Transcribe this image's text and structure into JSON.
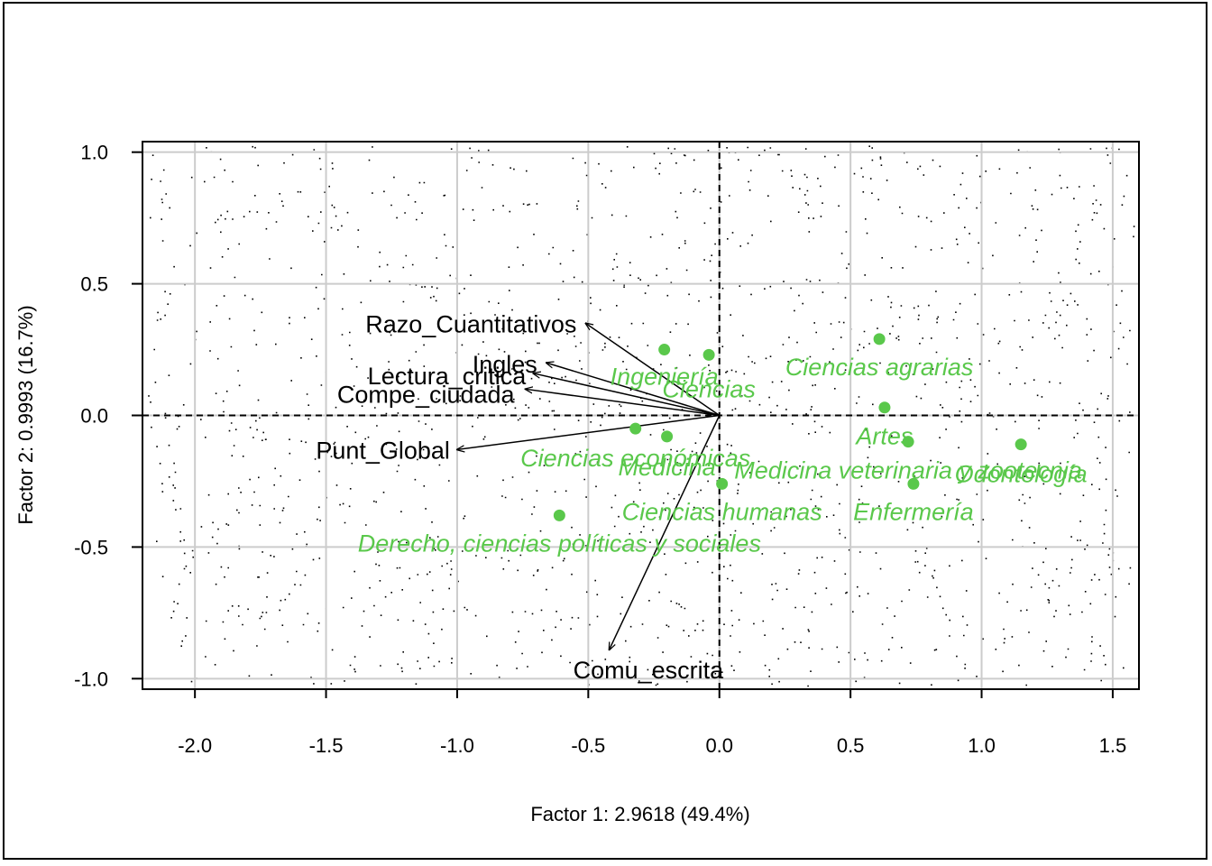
{
  "chart_data": {
    "type": "scatter",
    "subtype": "biplot",
    "xlabel": "Factor 1: 2.9618 (49.4%)",
    "ylabel": "Factor 2: 0.9993 (16.7%)",
    "xlim": [
      -2.2,
      1.6
    ],
    "ylim": [
      -1.04,
      1.04
    ],
    "x_ticks": [
      -2.0,
      -1.5,
      -1.0,
      -0.5,
      0.0,
      0.5,
      1.0,
      1.5
    ],
    "x_tick_labels": [
      "-2.0",
      "-1.5",
      "-1.0",
      "-0.5",
      "0.0",
      "0.5",
      "1.0",
      "1.5"
    ],
    "y_ticks": [
      1.0,
      0.5,
      0.0,
      -0.5,
      -1.0
    ],
    "y_tick_labels": [
      "1.0",
      "0.5",
      "0.0",
      "-0.5",
      "-1.0"
    ],
    "grid": true,
    "reference_lines": {
      "x": 0.0,
      "y": 0.0,
      "style": "dashed"
    },
    "colors": {
      "points": "#5ac84b",
      "labels": "#5ac84b",
      "arrows": "#000000",
      "grid": "#cccccc"
    },
    "variables": [
      {
        "name": "Razo_Cuantitativos",
        "x": -0.51,
        "y": 0.35
      },
      {
        "name": "Ingles",
        "x": -0.66,
        "y": 0.2
      },
      {
        "name": "Lectura_critica",
        "x": -0.71,
        "y": 0.16
      },
      {
        "name": "Compe_ciudada",
        "x": -0.74,
        "y": 0.1
      },
      {
        "name": "Punt_Global",
        "x": -1.0,
        "y": -0.13
      },
      {
        "name": "Comu_escrita",
        "x": -0.42,
        "y": -0.89
      }
    ],
    "observations": [
      {
        "name": "Ingeniería",
        "x": -0.21,
        "y": 0.25
      },
      {
        "name": "Ciencias",
        "x": -0.04,
        "y": 0.23
      },
      {
        "name": "Ciencias agrarias",
        "x": 0.61,
        "y": 0.29
      },
      {
        "name": "Artes",
        "x": 0.63,
        "y": 0.03
      },
      {
        "name": "Ciencias económicas",
        "x": -0.32,
        "y": -0.05
      },
      {
        "name": "Medicina",
        "x": -0.2,
        "y": -0.08
      },
      {
        "name": "Medicina veterinaria y zootecnia",
        "x": 0.72,
        "y": -0.1
      },
      {
        "name": "Odontología",
        "x": 1.15,
        "y": -0.11
      },
      {
        "name": "Ciencias humanas",
        "x": 0.01,
        "y": -0.26
      },
      {
        "name": "Enfermería",
        "x": 0.74,
        "y": -0.26
      },
      {
        "name": "Derecho, ciencias políticas y sociales",
        "x": -0.61,
        "y": -0.38
      }
    ]
  }
}
